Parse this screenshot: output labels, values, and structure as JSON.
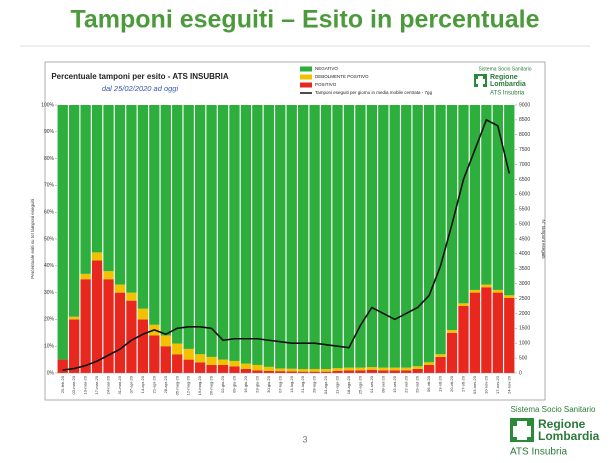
{
  "slide": {
    "title": "Tamponi eseguiti – Esito in percentuale",
    "page_number": "3",
    "logo": {
      "line1": "Sistema Socio Sanitario",
      "line2": "Regione",
      "line3": "Lombardia",
      "line4": "ATS Insubria"
    }
  },
  "chart_logo": {
    "line1": "Sistema Socio Sanitario",
    "line2": "Regione",
    "line3": "Lombardia",
    "line4": "ATS Insubria"
  },
  "chart_data": {
    "type": "stacked_bar_line",
    "title": "Percentuale tamponi per esito - ATS INSUBRIA",
    "subtitle": "dal 25/02/2020 ad oggi",
    "y_label": "Percentuale esiti su tot tamponi eseguiti",
    "y2_label": "N° tamponi eseguiti",
    "categories": [
      "25-feb-20",
      "03-mar-20",
      "10-mar-20",
      "17-mar-20",
      "24-mar-20",
      "31-mar-20",
      "07-apr-20",
      "14-apr-20",
      "21-apr-20",
      "28-apr-20",
      "05-mag-20",
      "12-mag-20",
      "19-mag-20",
      "26-mag-20",
      "02-giu-20",
      "09-giu-20",
      "16-giu-20",
      "23-giu-20",
      "30-giu-20",
      "07-lug-20",
      "14-lug-20",
      "21-lug-20",
      "28-lug-20",
      "04-ago-20",
      "11-ago-20",
      "18-ago-20",
      "25-ago-20",
      "01-set-20",
      "08-set-20",
      "15-set-20",
      "22-set-20",
      "29-set-20",
      "06-ott-20",
      "13-ott-20",
      "20-ott-20",
      "27-ott-20",
      "03-nov-20",
      "10-nov-20",
      "17-nov-20",
      "24-nov-20"
    ],
    "series": [
      {
        "name": "NEGATIVO",
        "color": "#2eae3c",
        "values": [
          95,
          79,
          63,
          55,
          62,
          67,
          70,
          76,
          82,
          86,
          89,
          91,
          93,
          94,
          95,
          95.5,
          96.5,
          97,
          97.7,
          98.3,
          98.4,
          98.5,
          98.5,
          98.5,
          98.2,
          98,
          98,
          97.8,
          98,
          98,
          98,
          97.5,
          96,
          93,
          84,
          74,
          69,
          67,
          69,
          71
        ]
      },
      {
        "name": "DEBOLMENTE POSITIVO",
        "color": "#f2c200",
        "values": [
          0,
          1,
          2,
          3,
          3,
          3,
          3,
          4,
          4,
          4,
          4,
          4,
          3,
          3,
          2,
          2,
          2,
          2,
          1.5,
          1,
          1,
          1,
          1,
          1,
          1,
          1,
          1,
          1,
          1,
          1,
          1,
          1,
          1,
          1,
          1,
          1,
          1,
          1,
          1,
          1
        ]
      },
      {
        "name": "POSITIVO",
        "color": "#e8281e",
        "values": [
          5,
          20,
          35,
          42,
          35,
          30,
          27,
          20,
          14,
          10,
          7,
          5,
          4,
          3,
          3,
          2.5,
          1.5,
          1,
          0.8,
          0.7,
          0.6,
          0.5,
          0.5,
          0.5,
          0.8,
          1,
          1,
          1.2,
          1,
          1,
          1,
          1.5,
          3,
          6,
          15,
          25,
          30,
          32,
          30,
          28
        ]
      },
      {
        "name": "Tamponi eseguiti per giorno in media mobile centrata - 7gg",
        "color": "#111111",
        "type": "line",
        "axis": "y2",
        "values": [
          100,
          150,
          250,
          400,
          600,
          800,
          1100,
          1300,
          1450,
          1300,
          1500,
          1550,
          1550,
          1500,
          1100,
          1150,
          1150,
          1150,
          1100,
          1050,
          1000,
          1000,
          1000,
          950,
          900,
          850,
          1600,
          2200,
          2000,
          1800,
          2000,
          2200,
          2600,
          3600,
          5000,
          6500,
          7500,
          8500,
          8300,
          6700
        ]
      }
    ],
    "ylim": [
      0,
      100
    ],
    "yticks": [
      {
        "value": 0,
        "label": "0%"
      },
      {
        "value": 10,
        "label": "10%"
      },
      {
        "value": 20,
        "label": "20%"
      },
      {
        "value": 30,
        "label": "30%"
      },
      {
        "value": 40,
        "label": "40%"
      },
      {
        "value": 50,
        "label": "50%"
      },
      {
        "value": 60,
        "label": "60%"
      },
      {
        "value": 70,
        "label": "70%"
      },
      {
        "value": 80,
        "label": "80%"
      },
      {
        "value": 90,
        "label": "90%"
      },
      {
        "value": 100,
        "label": "100%"
      }
    ],
    "y2lim": [
      0,
      9000
    ],
    "y2ticks": [
      0,
      500,
      1000,
      1500,
      2000,
      2500,
      3000,
      3500,
      4000,
      4500,
      5000,
      5500,
      6000,
      6500,
      7000,
      7500,
      8000,
      8500,
      9000
    ]
  }
}
